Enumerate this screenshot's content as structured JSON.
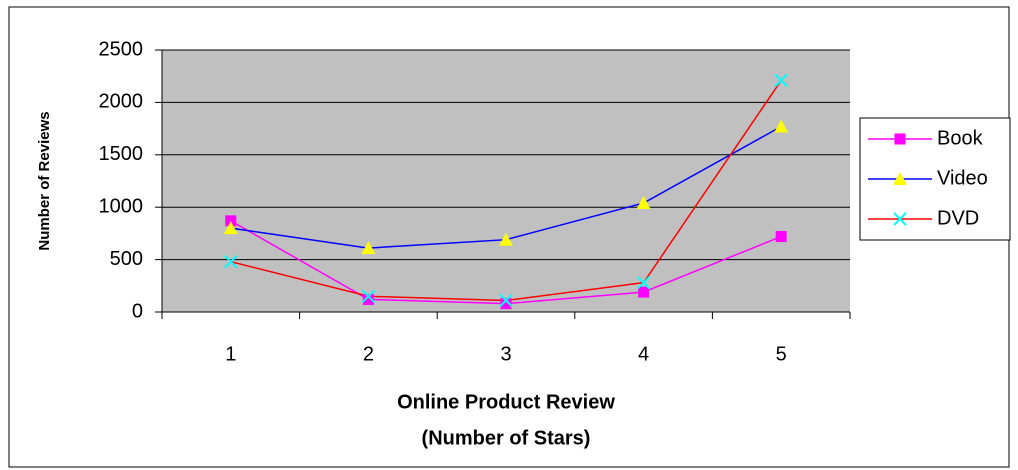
{
  "chart_data": {
    "type": "line",
    "x_label": [
      "Online Product Review",
      "(Number of Stars)"
    ],
    "y_label": "Number of Reviews",
    "categories": [
      "1",
      "2",
      "3",
      "4",
      "5"
    ],
    "series": [
      {
        "name": "Book",
        "color": "#ff00ff",
        "marker": "square",
        "marker_color": "#ff00ff",
        "values": [
          870,
          120,
          80,
          190,
          720
        ]
      },
      {
        "name": "Video",
        "color": "#0000ff",
        "marker": "triangle",
        "marker_color": "#ffff00",
        "values": [
          800,
          610,
          690,
          1040,
          1770
        ]
      },
      {
        "name": "DVD",
        "color": "#ff0000",
        "marker": "cross",
        "marker_color": "#00ffff",
        "values": [
          480,
          150,
          110,
          280,
          2210
        ]
      }
    ],
    "ylim": [
      0,
      2500
    ],
    "yticks": [
      0,
      500,
      1000,
      1500,
      2000,
      2500
    ],
    "grid": true,
    "legend": "right"
  }
}
